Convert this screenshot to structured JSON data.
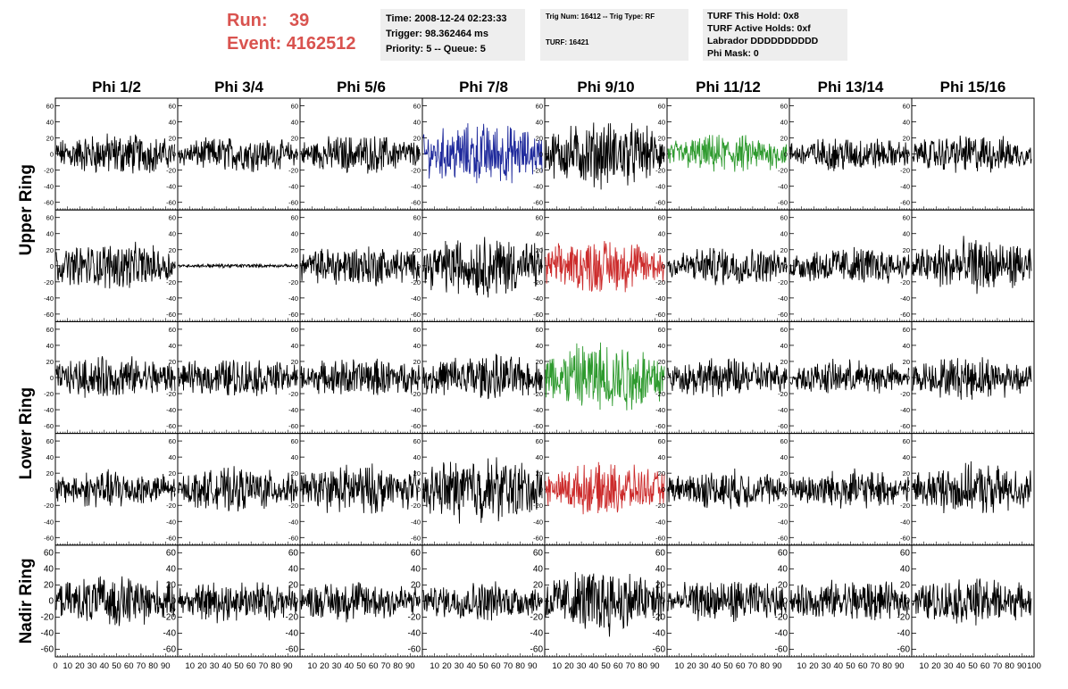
{
  "header": {
    "run_label": "Run:",
    "run_value": "39",
    "event_label": "Event:",
    "event_value": "4162512",
    "time": "Time: 2008-12-24 02:23:33",
    "trigger": "Trigger: 98.362464 ms",
    "priority": "Priority: 5 -- Queue: 5",
    "trig_num": "Trig Num: 16412 -- Trig Type: RF",
    "turf": "TURF: 16421",
    "turf_this_hold": "TURF This Hold: 0x8",
    "turf_active_holds": "TURF Active Holds: 0xf",
    "labrador": "Labrador DDDDDDDDDD",
    "phi_mask": "Phi Mask: 0"
  },
  "chart_data": {
    "type": "line",
    "columns": [
      "Phi 1/2",
      "Phi 3/4",
      "Phi 5/6",
      "Phi 7/8",
      "Phi 9/10",
      "Phi 11/12",
      "Phi 13/14",
      "Phi 15/16"
    ],
    "row_labels": [
      "Upper Ring",
      "Lower Ring",
      "Nadir Ring"
    ],
    "ylim": [
      -65,
      65
    ],
    "xlim": [
      0,
      100
    ],
    "yticks": [
      -60,
      -40,
      -20,
      0,
      20,
      40,
      60
    ],
    "xticks": [
      0,
      10,
      20,
      30,
      40,
      50,
      60,
      70,
      80,
      90,
      100
    ],
    "colors": {
      "black": "#000000",
      "blue": "#1f2a9c",
      "green": "#2e9a2e",
      "red": "#cc2b2b"
    },
    "panels": [
      [
        {
          "color": "black",
          "amp": 22
        },
        {
          "color": "black",
          "amp": 18
        },
        {
          "color": "black",
          "amp": 20
        },
        {
          "color": "blue",
          "amp": 32
        },
        {
          "color": "black",
          "amp": 34
        },
        {
          "color": "green",
          "amp": 20
        },
        {
          "color": "black",
          "amp": 18
        },
        {
          "color": "black",
          "amp": 20
        }
      ],
      [
        {
          "color": "black",
          "amp": 24
        },
        {
          "color": "black",
          "amp": 2
        },
        {
          "color": "black",
          "amp": 22
        },
        {
          "color": "black",
          "amp": 32
        },
        {
          "color": "red",
          "amp": 28
        },
        {
          "color": "black",
          "amp": 20
        },
        {
          "color": "black",
          "amp": 20
        },
        {
          "color": "black",
          "amp": 28
        }
      ],
      [
        {
          "color": "black",
          "amp": 22
        },
        {
          "color": "black",
          "amp": 20
        },
        {
          "color": "black",
          "amp": 20
        },
        {
          "color": "black",
          "amp": 24
        },
        {
          "color": "green",
          "amp": 38
        },
        {
          "color": "black",
          "amp": 20
        },
        {
          "color": "black",
          "amp": 18
        },
        {
          "color": "black",
          "amp": 22
        }
      ],
      [
        {
          "color": "black",
          "amp": 20
        },
        {
          "color": "black",
          "amp": 22
        },
        {
          "color": "black",
          "amp": 26
        },
        {
          "color": "black",
          "amp": 34
        },
        {
          "color": "red",
          "amp": 26
        },
        {
          "color": "black",
          "amp": 20
        },
        {
          "color": "black",
          "amp": 20
        },
        {
          "color": "black",
          "amp": 26
        }
      ],
      [
        {
          "color": "black",
          "amp": 26
        },
        {
          "color": "black",
          "amp": 22
        },
        {
          "color": "black",
          "amp": 22
        },
        {
          "color": "black",
          "amp": 20
        },
        {
          "color": "black",
          "amp": 34
        },
        {
          "color": "black",
          "amp": 22
        },
        {
          "color": "black",
          "amp": 22
        },
        {
          "color": "black",
          "amp": 24
        }
      ]
    ]
  }
}
